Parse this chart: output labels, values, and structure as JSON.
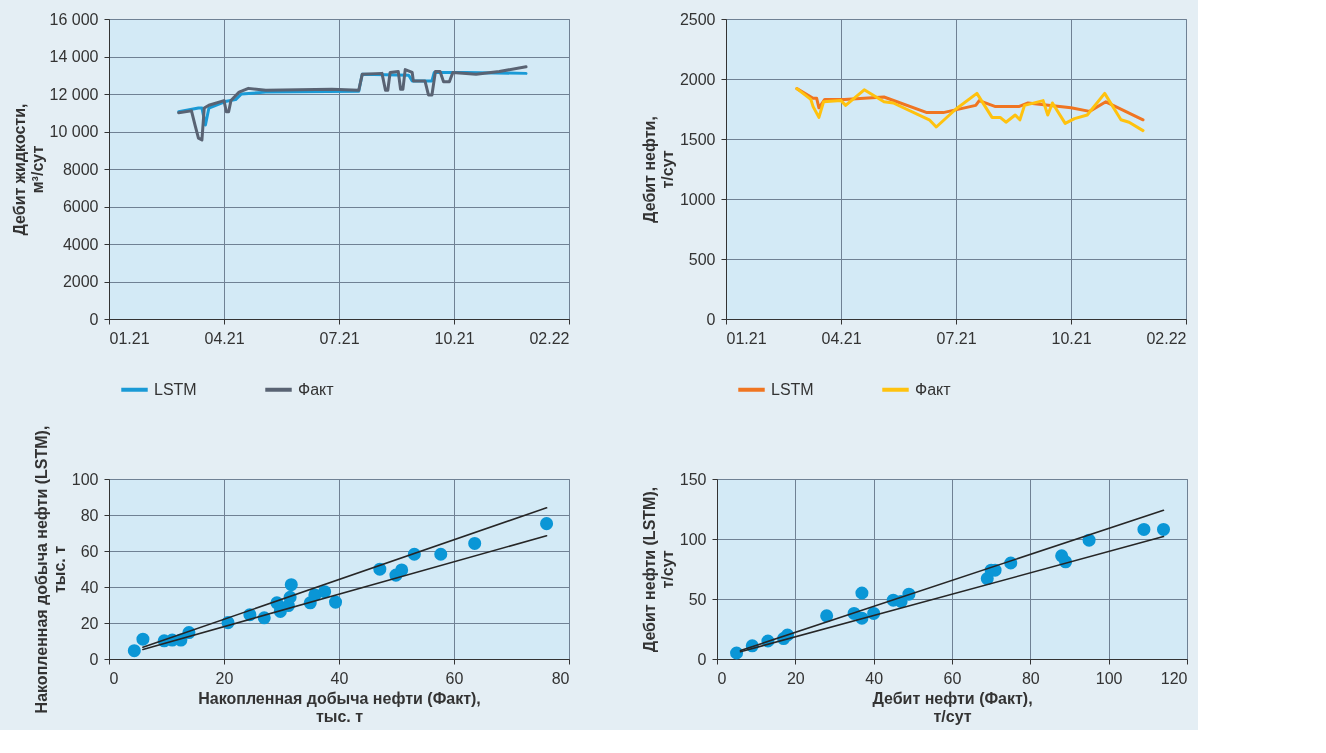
{
  "chart_data": [
    {
      "type": "line",
      "ylabel": "Дебит жидкости, м³/сут",
      "xlim": [
        "2021-01-01",
        "2022-02-01"
      ],
      "xticks": [
        {
          "value": "2021-01-01",
          "label": "01.21"
        },
        {
          "value": "2021-04-10",
          "label": "04.21"
        },
        {
          "value": "2021-07-18",
          "label": "07.21"
        },
        {
          "value": "2021-10-25",
          "label": "10.21"
        },
        {
          "value": "2022-02-01",
          "label": "02.22"
        }
      ],
      "ylim": [
        0,
        16000
      ],
      "yticks": [
        0,
        2000,
        4000,
        6000,
        8000,
        {
          "value": 10000,
          "label": "10 000"
        },
        {
          "value": 12000,
          "label": "12 000"
        },
        {
          "value": 14000,
          "label": "14 000"
        },
        {
          "value": 16000,
          "label": "16 000"
        }
      ],
      "grid": true,
      "legend": "bottom",
      "series": [
        {
          "name": "LSTM",
          "color": "#1a9ad6",
          "x": [
            "2021-03-02",
            "2021-03-19",
            "2021-03-22",
            "2021-03-25",
            "2021-03-28",
            "2021-04-11",
            "2021-04-20",
            "2021-04-25",
            "2021-05-16",
            "2021-08-04",
            "2021-08-07",
            "2021-09-16",
            "2021-09-19",
            "2021-10-06",
            "2021-10-08",
            "2021-11-04",
            "2021-12-26"
          ],
          "values": [
            11050,
            11250,
            11250,
            10350,
            11250,
            11600,
            11700,
            12000,
            12100,
            12150,
            13050,
            13000,
            12700,
            12700,
            13150,
            13150,
            13100
          ]
        },
        {
          "name": "Факт",
          "color": "#596373",
          "x": [
            "2021-03-02",
            "2021-03-13",
            "2021-03-16",
            "2021-03-19",
            "2021-03-22",
            "2021-03-24",
            "2021-03-28",
            "2021-04-10",
            "2021-04-12",
            "2021-04-14",
            "2021-04-16",
            "2021-04-23",
            "2021-05-01",
            "2021-05-16",
            "2021-07-12",
            "2021-08-04",
            "2021-08-07",
            "2021-08-24",
            "2021-08-27",
            "2021-08-29",
            "2021-08-31",
            "2021-09-07",
            "2021-09-09",
            "2021-09-11",
            "2021-09-13",
            "2021-09-19",
            "2021-09-20",
            "2021-09-30",
            "2021-10-03",
            "2021-10-06",
            "2021-10-09",
            "2021-10-13",
            "2021-10-16",
            "2021-10-21",
            "2021-10-24",
            "2021-11-13",
            "2021-12-03",
            "2021-12-26"
          ],
          "values": [
            11000,
            11100,
            10350,
            9650,
            9550,
            11250,
            11400,
            11650,
            11050,
            11050,
            11650,
            12100,
            12300,
            12200,
            12250,
            12200,
            13050,
            13100,
            12200,
            12200,
            13150,
            13200,
            12250,
            12250,
            13300,
            13150,
            12700,
            12700,
            11950,
            11950,
            13200,
            13200,
            12650,
            12650,
            13150,
            13050,
            13200,
            13450
          ]
        }
      ]
    },
    {
      "type": "line",
      "ylabel": "Дебит нефти, т/сут",
      "xlim": [
        "2021-01-01",
        "2022-02-01"
      ],
      "xticks": [
        {
          "value": "2021-01-01",
          "label": "01.21"
        },
        {
          "value": "2021-04-10",
          "label": "04.21"
        },
        {
          "value": "2021-07-18",
          "label": "07.21"
        },
        {
          "value": "2021-10-25",
          "label": "10.21"
        },
        {
          "value": "2022-02-01",
          "label": "02.22"
        }
      ],
      "ylim": [
        0,
        2500
      ],
      "yticks": [
        0,
        500,
        1000,
        1500,
        2000,
        2500
      ],
      "grid": true,
      "legend": "bottom",
      "series": [
        {
          "name": "LSTM",
          "color": "#f07521",
          "x": [
            "2021-03-03",
            "2021-03-17",
            "2021-03-20",
            "2021-03-22",
            "2021-03-27",
            "2021-04-13",
            "2021-05-17",
            "2021-06-23",
            "2021-07-07",
            "2021-08-04",
            "2021-08-07",
            "2021-08-21",
            "2021-09-10",
            "2021-09-18",
            "2021-10-25",
            "2021-11-10",
            "2021-11-24",
            "2021-12-26"
          ],
          "values": [
            1920,
            1840,
            1840,
            1760,
            1830,
            1830,
            1850,
            1720,
            1720,
            1780,
            1820,
            1770,
            1770,
            1800,
            1760,
            1730,
            1810,
            1660
          ]
        },
        {
          "name": "Факт",
          "color": "#ffc20e",
          "x": [
            "2021-03-03",
            "2021-03-15",
            "2021-03-17",
            "2021-03-22",
            "2021-03-26",
            "2021-04-10",
            "2021-04-14",
            "2021-04-30",
            "2021-05-17",
            "2021-05-25",
            "2021-06-25",
            "2021-07-01",
            "2021-07-18",
            "2021-08-05",
            "2021-08-18",
            "2021-08-25",
            "2021-08-30",
            "2021-09-07",
            "2021-09-11",
            "2021-09-15",
            "2021-10-01",
            "2021-10-05",
            "2021-10-09",
            "2021-10-20",
            "2021-10-28",
            "2021-11-08",
            "2021-11-23",
            "2021-12-07",
            "2021-12-14",
            "2021-12-26"
          ],
          "values": [
            1920,
            1830,
            1770,
            1680,
            1810,
            1820,
            1780,
            1910,
            1810,
            1800,
            1660,
            1600,
            1750,
            1880,
            1680,
            1680,
            1640,
            1700,
            1660,
            1780,
            1820,
            1700,
            1800,
            1630,
            1670,
            1700,
            1880,
            1660,
            1640,
            1570
          ]
        }
      ]
    },
    {
      "type": "scatter",
      "xlabel": "Накопленная добыча нефти (Факт), тыс. т",
      "ylabel": "Накопленная добыча нефти (LSTM), тыс. т",
      "xlim": [
        0,
        80
      ],
      "xticks": [
        0,
        20,
        40,
        60,
        80
      ],
      "ylim": [
        0,
        100
      ],
      "yticks": [
        0,
        20,
        40,
        60,
        80,
        100
      ],
      "grid": true,
      "series": [
        {
          "type": "scatter",
          "marker": "circle",
          "color": "#0a96d6",
          "x": [
            4.4,
            5.9,
            9.6,
            11,
            12.5,
            13.9,
            20.7,
            24.5,
            27,
            29.2,
            29.8,
            31.2,
            31.5,
            31.7,
            35,
            35.8,
            37.5,
            39.4,
            47.1,
            49.9,
            50.9,
            53.1,
            57.7,
            63.6,
            76.1
          ],
          "values": [
            4.6,
            11,
            10.1,
            10.5,
            10.5,
            14.7,
            20.2,
            24.6,
            22.9,
            31.2,
            26.4,
            29.7,
            34.3,
            41.3,
            31.2,
            35.6,
            37.4,
            31.6,
            49.9,
            46.6,
            49.5,
            58.2,
            58.2,
            64.2,
            75.2
          ]
        },
        {
          "type": "line",
          "color": "#262626",
          "x": [
            5.9,
            76.1
          ],
          "values": [
            6.5,
            84
          ]
        },
        {
          "type": "line",
          "color": "#262626",
          "x": [
            5.9,
            76.1
          ],
          "values": [
            5.3,
            68.5
          ]
        }
      ]
    },
    {
      "type": "scatter",
      "xlabel": "Дебит нефти (Факт), т/сут",
      "ylabel": "Дебит нефти (LSTM), т/сут",
      "xlim": [
        0,
        120
      ],
      "xticks": [
        0,
        20,
        40,
        60,
        80,
        100,
        120
      ],
      "ylim": [
        0,
        150
      ],
      "yticks": [
        0,
        50,
        100,
        150
      ],
      "grid": true,
      "series": [
        {
          "type": "scatter",
          "marker": "circle",
          "color": "#0a96d6",
          "x": [
            5,
            9,
            13,
            17,
            18,
            28,
            35,
            37,
            37,
            40,
            45,
            47,
            49,
            69,
            70,
            71,
            75,
            88,
            89,
            95,
            109,
            114
          ],
          "values": [
            5,
            11,
            15,
            17,
            20,
            36,
            38,
            55,
            34,
            38,
            49,
            48,
            54,
            67,
            74,
            74,
            80,
            86,
            81,
            99,
            108,
            108
          ]
        },
        {
          "type": "line",
          "color": "#262626",
          "x": [
            6,
            114
          ],
          "values": [
            7,
            124
          ]
        },
        {
          "type": "line",
          "color": "#262626",
          "x": [
            6,
            114
          ],
          "values": [
            6,
            102
          ]
        }
      ]
    }
  ]
}
